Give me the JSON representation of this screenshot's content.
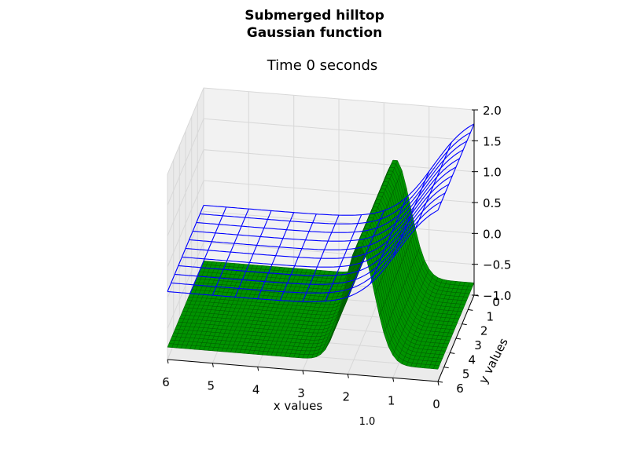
{
  "figure": {
    "title_line1": "Submerged hilltop",
    "title_line2": "Gaussian function",
    "subtitle": "Time 0 seconds",
    "stray_label": "1.0"
  },
  "chart_data": {
    "type": "surface3d",
    "title": "Submerged hilltop\nGaussian function",
    "subtitle": "Time 0 seconds",
    "xlabel": "x values",
    "ylabel": "y values",
    "zlabel": "",
    "xlim": [
      0,
      6
    ],
    "ylim": [
      0,
      6
    ],
    "zlim": [
      -1.0,
      2.0
    ],
    "x_ticks": [
      "6",
      "5",
      "4",
      "3",
      "2",
      "1",
      "0"
    ],
    "y_ticks": [
      "0",
      "1",
      "2",
      "3",
      "4",
      "5",
      "6"
    ],
    "z_ticks": [
      "2.0",
      "1.5",
      "1.0",
      "0.5",
      "0.0",
      "−0.5",
      "−1.0"
    ],
    "grid": true,
    "surfaces": [
      {
        "kind": "wireframe",
        "color": "#0000ff",
        "description_values": {
          "base_level": 0.1,
          "step_amplitude": 1.9,
          "step_center_x": 0.9,
          "step_width": 0.45
        }
      },
      {
        "kind": "filled",
        "color": "#008000",
        "edgecolor": "#004d00",
        "description_values": {
          "base_level": -0.8,
          "hill_height": 1.9,
          "hill_center_x": 1.75,
          "hill_width": 0.48
        }
      }
    ]
  }
}
